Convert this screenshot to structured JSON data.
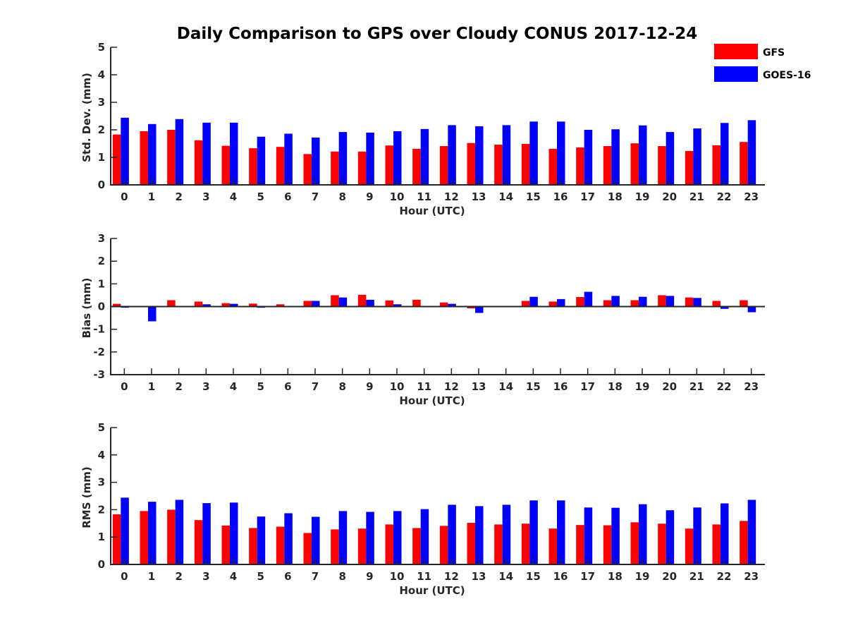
{
  "title": "Daily Comparison to GPS over Cloudy CONUS 2017-12-24",
  "legend": [
    {
      "name": "GFS",
      "color": "#ff0000"
    },
    {
      "name": "GOES-16",
      "color": "#0000ff"
    }
  ],
  "chart_data": [
    {
      "type": "bar",
      "ylabel": "Std. Dev. (mm)",
      "xlabel": "Hour (UTC)",
      "ylim": [
        0,
        5
      ],
      "yticks": [
        0,
        1,
        2,
        3,
        4,
        5
      ],
      "categories": [
        0,
        1,
        2,
        3,
        4,
        5,
        6,
        7,
        8,
        9,
        10,
        11,
        12,
        13,
        14,
        15,
        16,
        17,
        18,
        19,
        20,
        21,
        22,
        23
      ],
      "series": [
        {
          "name": "GFS",
          "values": [
            1.83,
            1.95,
            2.0,
            1.62,
            1.42,
            1.33,
            1.38,
            1.12,
            1.21,
            1.21,
            1.43,
            1.31,
            1.41,
            1.52,
            1.46,
            1.49,
            1.31,
            1.36,
            1.41,
            1.51,
            1.41,
            1.23,
            1.44,
            1.56
          ]
        },
        {
          "name": "GOES-16",
          "values": [
            2.44,
            2.21,
            2.39,
            2.26,
            2.26,
            1.75,
            1.86,
            1.72,
            1.92,
            1.9,
            1.95,
            2.03,
            2.17,
            2.13,
            2.17,
            2.3,
            2.3,
            2.0,
            2.02,
            2.16,
            1.92,
            2.05,
            2.25,
            2.35
          ]
        }
      ]
    },
    {
      "type": "bar",
      "ylabel": "Bias (mm)",
      "xlabel": "Hour (UTC)",
      "ylim": [
        -3,
        3
      ],
      "yticks": [
        -3,
        -2,
        -1,
        0,
        1,
        2,
        3
      ],
      "categories": [
        0,
        1,
        2,
        3,
        4,
        5,
        6,
        7,
        8,
        9,
        10,
        11,
        12,
        13,
        14,
        15,
        16,
        17,
        18,
        19,
        20,
        21,
        22,
        23
      ],
      "series": [
        {
          "name": "GFS",
          "values": [
            0.12,
            -0.02,
            0.28,
            0.22,
            0.15,
            0.13,
            0.1,
            0.25,
            0.5,
            0.52,
            0.27,
            0.3,
            0.18,
            -0.08,
            0.02,
            0.25,
            0.22,
            0.42,
            0.28,
            0.28,
            0.5,
            0.4,
            0.25,
            0.28
          ]
        },
        {
          "name": "GOES-16",
          "values": [
            -0.05,
            -0.65,
            0.03,
            0.1,
            0.12,
            -0.05,
            0.02,
            0.25,
            0.4,
            0.3,
            0.1,
            0.0,
            0.12,
            -0.28,
            0.02,
            0.43,
            0.33,
            0.65,
            0.47,
            0.43,
            0.47,
            0.38,
            -0.1,
            -0.25
          ]
        }
      ]
    },
    {
      "type": "bar",
      "ylabel": "RMS (mm)",
      "xlabel": "Hour (UTC)",
      "ylim": [
        0,
        5
      ],
      "yticks": [
        0,
        1,
        2,
        3,
        4,
        5
      ],
      "categories": [
        0,
        1,
        2,
        3,
        4,
        5,
        6,
        7,
        8,
        9,
        10,
        11,
        12,
        13,
        14,
        15,
        16,
        17,
        18,
        19,
        20,
        21,
        22,
        23
      ],
      "series": [
        {
          "name": "GFS",
          "values": [
            1.83,
            1.95,
            2.0,
            1.62,
            1.42,
            1.33,
            1.38,
            1.15,
            1.28,
            1.31,
            1.46,
            1.33,
            1.41,
            1.52,
            1.46,
            1.49,
            1.31,
            1.44,
            1.43,
            1.54,
            1.49,
            1.31,
            1.46,
            1.59
          ]
        },
        {
          "name": "GOES-16",
          "values": [
            2.44,
            2.29,
            2.36,
            2.24,
            2.26,
            1.75,
            1.87,
            1.74,
            1.95,
            1.92,
            1.95,
            2.02,
            2.18,
            2.13,
            2.18,
            2.34,
            2.34,
            2.08,
            2.07,
            2.2,
            1.98,
            2.08,
            2.23,
            2.36
          ]
        }
      ]
    }
  ]
}
